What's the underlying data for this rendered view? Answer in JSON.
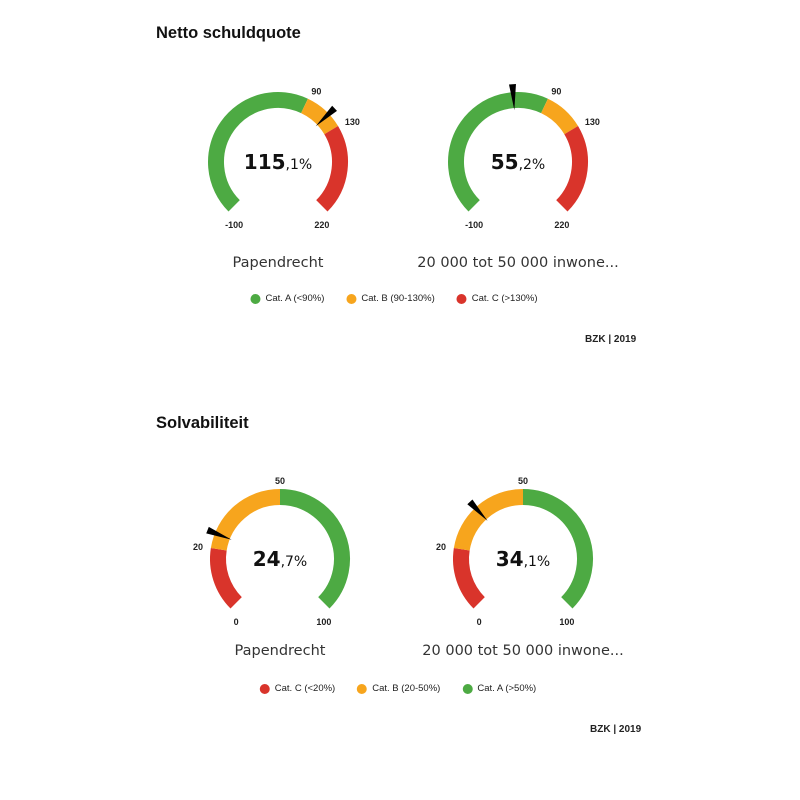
{
  "colors": {
    "green": "#4daa43",
    "orange": "#f7a51d",
    "red": "#d9342b",
    "needle": "#000000"
  },
  "chart_data": [
    {
      "type": "gauge",
      "title": "Netto schuldquote",
      "unit": "%",
      "range": [
        -100,
        220
      ],
      "bands": [
        {
          "from": -100,
          "to": 90,
          "color": "green"
        },
        {
          "from": 90,
          "to": 130,
          "color": "orange"
        },
        {
          "from": 130,
          "to": 220,
          "color": "red"
        }
      ],
      "tick_labels": [
        {
          "value": -100,
          "text": "-100"
        },
        {
          "value": 90,
          "text": "90"
        },
        {
          "value": 130,
          "text": "130"
        },
        {
          "value": 220,
          "text": "220"
        }
      ],
      "gauges": [
        {
          "label": "Papendrecht",
          "value": 115.1,
          "int_text": "115",
          "dec_text": ",1%"
        },
        {
          "label": "20 000 tot 50 000 inwone...",
          "value": 55.2,
          "int_text": "55",
          "dec_text": ",2%"
        }
      ],
      "legend": [
        {
          "text": "Cat. A (<90%)",
          "color": "green"
        },
        {
          "text": "Cat. B (90-130%)",
          "color": "orange"
        },
        {
          "text": "Cat. C (>130%)",
          "color": "red"
        }
      ],
      "source": "BZK | 2019"
    },
    {
      "type": "gauge",
      "title": "Solvabiliteit",
      "unit": "%",
      "range": [
        0,
        100
      ],
      "bands": [
        {
          "from": 0,
          "to": 20,
          "color": "red"
        },
        {
          "from": 20,
          "to": 50,
          "color": "orange"
        },
        {
          "from": 50,
          "to": 100,
          "color": "green"
        }
      ],
      "tick_labels": [
        {
          "value": 0,
          "text": "0"
        },
        {
          "value": 20,
          "text": "20"
        },
        {
          "value": 50,
          "text": "50"
        },
        {
          "value": 100,
          "text": "100"
        }
      ],
      "gauges": [
        {
          "label": "Papendrecht",
          "value": 24.7,
          "int_text": "24",
          "dec_text": ",7%"
        },
        {
          "label": "20 000 tot 50 000 inwone...",
          "value": 34.1,
          "int_text": "34",
          "dec_text": ",1%"
        }
      ],
      "legend": [
        {
          "text": "Cat. C (<20%)",
          "color": "red"
        },
        {
          "text": "Cat. B (20-50%)",
          "color": "orange"
        },
        {
          "text": "Cat. A (>50%)",
          "color": "green"
        }
      ],
      "source": "BZK | 2019"
    }
  ]
}
